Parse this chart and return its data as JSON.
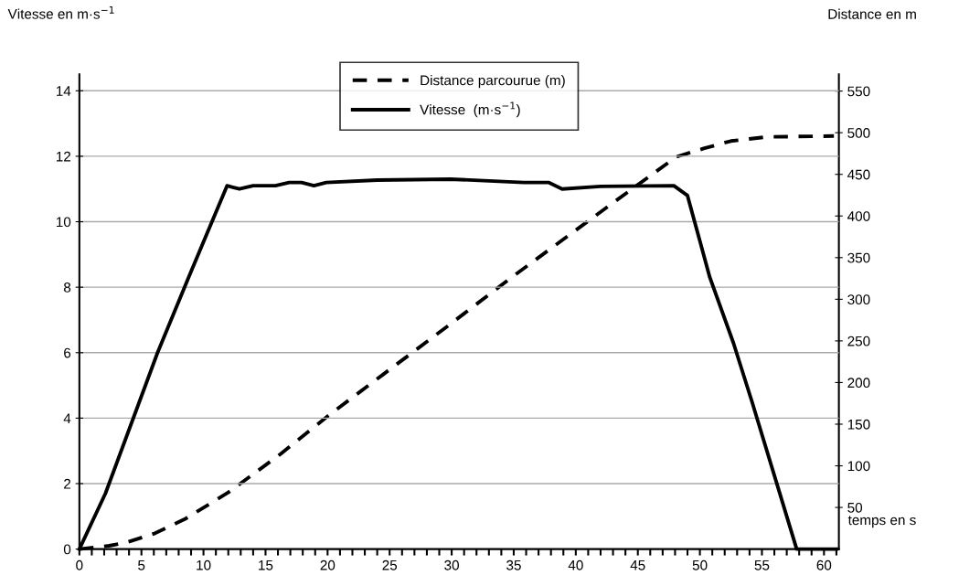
{
  "chart_data": {
    "type": "line",
    "xlabel": "temps en s",
    "ylabel": "Vitesse en m·s$^{−1}$",
    "y2label": "Distance en m",
    "xlim": [
      0,
      61.2
    ],
    "ylim": [
      0,
      14.5
    ],
    "y2lim": [
      0,
      570
    ],
    "xticks": [
      0,
      {
        "value": 1,
        "label": null
      },
      {
        "value": 2,
        "label": null
      },
      {
        "value": 3,
        "label": null
      },
      {
        "value": 4,
        "label": null
      },
      5,
      {
        "value": 6,
        "label": null
      },
      {
        "value": 7,
        "label": null
      },
      {
        "value": 8,
        "label": null
      },
      {
        "value": 9,
        "label": null
      },
      10,
      {
        "value": 11,
        "label": null
      },
      {
        "value": 12,
        "label": null
      },
      {
        "value": 13,
        "label": null
      },
      {
        "value": 14,
        "label": null
      },
      15,
      {
        "value": 16,
        "label": null
      },
      {
        "value": 17,
        "label": null
      },
      {
        "value": 18,
        "label": null
      },
      {
        "value": 19,
        "label": null
      },
      20,
      {
        "value": 21,
        "label": null
      },
      {
        "value": 22,
        "label": null
      },
      {
        "value": 23,
        "label": null
      },
      {
        "value": 24,
        "label": null
      },
      25,
      {
        "value": 26,
        "label": null
      },
      {
        "value": 27,
        "label": null
      },
      {
        "value": 28,
        "label": null
      },
      {
        "value": 29,
        "label": null
      },
      30,
      {
        "value": 31,
        "label": null
      },
      {
        "value": 32,
        "label": null
      },
      {
        "value": 33,
        "label": null
      },
      {
        "value": 34,
        "label": null
      },
      35,
      {
        "value": 36,
        "label": null
      },
      {
        "value": 37,
        "label": null
      },
      {
        "value": 38,
        "label": null
      },
      {
        "value": 39,
        "label": null
      },
      40,
      {
        "value": 41,
        "label": null
      },
      {
        "value": 42,
        "label": null
      },
      {
        "value": 43,
        "label": null
      },
      {
        "value": 44,
        "label": null
      },
      45,
      {
        "value": 46,
        "label": null
      },
      {
        "value": 47,
        "label": null
      },
      {
        "value": 48,
        "label": null
      },
      {
        "value": 49,
        "label": null
      },
      50,
      {
        "value": 51,
        "label": null
      },
      {
        "value": 52,
        "label": null
      },
      {
        "value": 53,
        "label": null
      },
      {
        "value": 54,
        "label": null
      },
      55,
      {
        "value": 56,
        "label": null
      },
      {
        "value": 57,
        "label": null
      },
      {
        "value": 58,
        "label": null
      },
      {
        "value": 59,
        "label": null
      },
      60,
      {
        "value": 61,
        "label": null
      }
    ],
    "yticks": [
      0,
      2,
      4,
      6,
      8,
      10,
      12,
      14
    ],
    "y2ticks": [
      50,
      100,
      150,
      200,
      250,
      300,
      350,
      400,
      450,
      500,
      550
    ],
    "grid": "y",
    "legend": "top",
    "marker": "none",
    "series": [
      {
        "name": "Distance parcourue (m)",
        "color": "#000000",
        "line_style": "dashed",
        "axis": "y2",
        "x": [
          0,
          2.4,
          3.8,
          6.1,
          8.5,
          12,
          16.2,
          20.3,
          24.5,
          29.7,
          34.8,
          39,
          43.2,
          48.1,
          50.3,
          52.5,
          55.4,
          60.8
        ],
        "values": [
          0,
          4,
          8,
          19,
          36,
          68,
          114,
          163,
          210,
          268,
          326,
          372,
          418,
          471,
          481,
          490,
          495,
          496
        ]
      },
      {
        "name": "Vitesse  (m·s$^{−1}$)",
        "color": "#000000",
        "line_style": "solid",
        "x": [
          0,
          2.1,
          6.3,
          8.8,
          11.9,
          12.9,
          14,
          15.8,
          16.9,
          17.9,
          18.9,
          19.9,
          24,
          29.9,
          35.8,
          37.8,
          38.9,
          42,
          47.9,
          49,
          50.8,
          52.7,
          54.2,
          57.8,
          61
        ],
        "values": [
          0,
          1.7,
          6.0,
          8.3,
          11.1,
          11.0,
          11.1,
          11.1,
          11.2,
          11.2,
          11.1,
          11.2,
          11.27,
          11.3,
          11.2,
          11.2,
          11.0,
          11.08,
          11.1,
          10.8,
          8.3,
          6.3,
          4.5,
          0,
          0
        ]
      }
    ]
  }
}
